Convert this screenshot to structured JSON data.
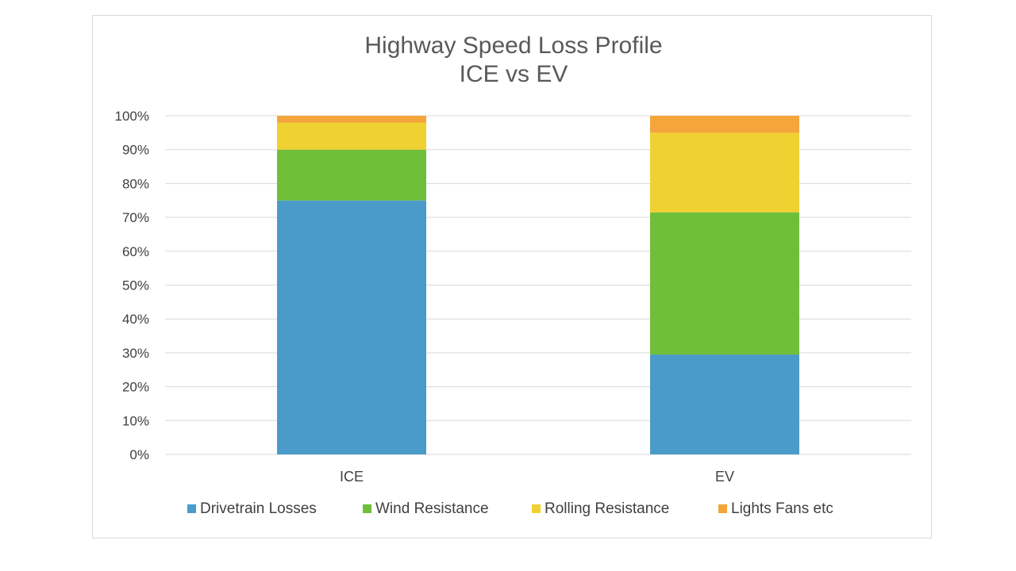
{
  "chart_data": {
    "type": "bar",
    "stacked": true,
    "title": "Highway Speed Loss Profile",
    "subtitle": "ICE vs EV",
    "categories": [
      "ICE",
      "EV"
    ],
    "series": [
      {
        "name": "Drivetrain Losses",
        "color": "#4a9bc9",
        "values": [
          75,
          29.5
        ]
      },
      {
        "name": "Wind Resistance",
        "color": "#70bf3a",
        "values": [
          15,
          42
        ]
      },
      {
        "name": "Rolling Resistance",
        "color": "#f0d132",
        "values": [
          8,
          23.5
        ]
      },
      {
        "name": "Lights Fans etc",
        "color": "#f4a53b",
        "values": [
          2,
          5
        ]
      }
    ],
    "y_ticks": [
      "0%",
      "10%",
      "20%",
      "30%",
      "40%",
      "50%",
      "60%",
      "70%",
      "80%",
      "90%",
      "100%"
    ],
    "ylim": [
      0,
      100
    ],
    "yunit": "%",
    "grid": true,
    "legend_position": "bottom",
    "colors": {
      "gridline": "#d9d9d9",
      "text": "#404040",
      "title": "#595959",
      "frame": "#d9d9d9"
    }
  }
}
